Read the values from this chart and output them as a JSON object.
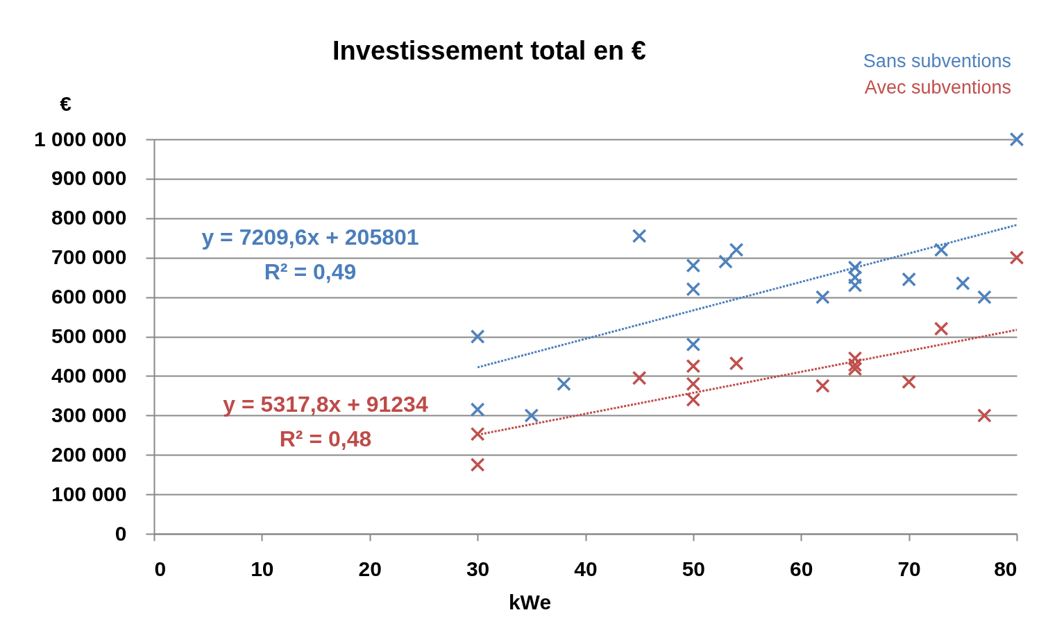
{
  "chart_data": {
    "type": "scatter",
    "title": "Investissement total en €",
    "xlabel": "kWe",
    "ylabel": "€",
    "xlim": [
      0,
      80
    ],
    "xticks": [
      0,
      10,
      20,
      30,
      40,
      50,
      60,
      70,
      80
    ],
    "ylim": [
      0,
      1000000
    ],
    "yticks": [
      0,
      {
        "value": 100000,
        "label": "100 000"
      },
      {
        "value": 200000,
        "label": "200 000"
      },
      {
        "value": 300000,
        "label": "300 000"
      },
      {
        "value": 400000,
        "label": "400 000"
      },
      {
        "value": 500000,
        "label": "500 000"
      },
      {
        "value": 600000,
        "label": "600 000"
      },
      {
        "value": 700000,
        "label": "700 000"
      },
      {
        "value": 800000,
        "label": "800 000"
      },
      {
        "value": 900000,
        "label": "900 000"
      },
      {
        "value": 1000000,
        "label": "1 000 000"
      }
    ],
    "grid": "y",
    "legend": "top right",
    "marker": "cross",
    "series": [
      {
        "name": "Sans subventions",
        "color": "#4f81bd",
        "x": [
          30,
          30,
          35,
          38,
          45,
          50,
          50,
          50,
          53,
          54,
          62,
          65,
          65,
          65,
          70,
          73,
          75,
          77,
          80
        ],
        "values": [
          500000,
          315000,
          300000,
          380000,
          755000,
          680000,
          620000,
          480000,
          690000,
          720000,
          600000,
          675000,
          650000,
          630000,
          645000,
          720000,
          635000,
          600000,
          1000000
        ]
      },
      {
        "name": "Avec subventions",
        "color": "#c0504d",
        "x": [
          30,
          30,
          45,
          50,
          50,
          50,
          54,
          62,
          65,
          65,
          65,
          70,
          73,
          77,
          80
        ],
        "values": [
          253000,
          175000,
          395000,
          425000,
          380000,
          340000,
          432000,
          375000,
          445000,
          428000,
          418000,
          385000,
          520000,
          300000,
          700000
        ]
      },
      {
        "type": "line",
        "color": "#4a7ebb",
        "line_style": "dotted",
        "marker": "none",
        "x": [
          30,
          80
        ],
        "values": [
          422000,
          783000
        ]
      },
      {
        "type": "line",
        "color": "#be4b48",
        "line_style": "dotted",
        "marker": "none",
        "x": [
          30,
          80
        ],
        "values": [
          251000,
          517000
        ]
      }
    ],
    "annotations": [
      "y = 7209,6x + 205801",
      "R² = 0,49",
      "y = 5317,8x + 91234",
      "R² = 0,48"
    ]
  }
}
